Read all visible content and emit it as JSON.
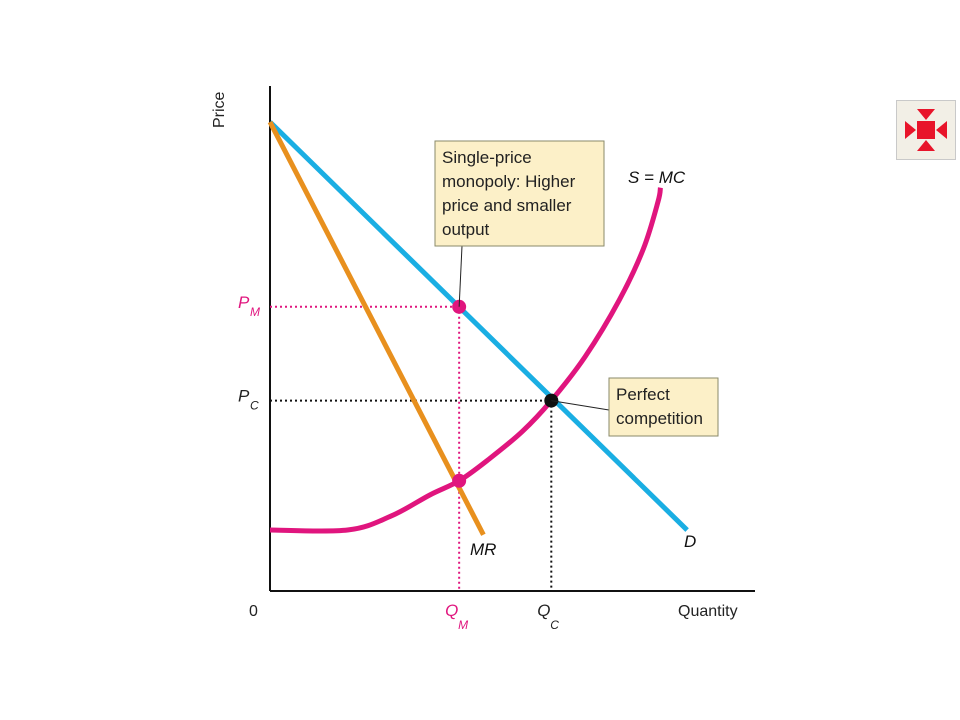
{
  "chart_data": {
    "type": "line",
    "xlabel": "Quantity",
    "ylabel": "Price",
    "xlim": [
      0,
      100
    ],
    "ylim": [
      0,
      100
    ],
    "origin_label": "0",
    "series": [
      {
        "name": "D",
        "color": "#1aaee3",
        "points": [
          [
            0,
            100
          ],
          [
            86,
            13
          ]
        ]
      },
      {
        "name": "MR",
        "color": "#e8901e",
        "points": [
          [
            0,
            100
          ],
          [
            44,
            12
          ]
        ]
      },
      {
        "name": "S = MC",
        "color": "#e0157e",
        "points": [
          [
            0,
            13
          ],
          [
            16,
            13
          ],
          [
            25,
            16
          ],
          [
            33,
            20.5
          ],
          [
            39,
            23.5
          ],
          [
            45,
            28
          ],
          [
            52,
            34
          ],
          [
            58,
            40.6
          ],
          [
            65,
            50
          ],
          [
            72,
            62
          ],
          [
            77,
            73
          ],
          [
            80,
            83
          ],
          [
            80.5,
            86
          ]
        ]
      }
    ],
    "points": [
      {
        "name": "monopoly",
        "x": 39,
        "y": 60.6,
        "color": "#e0157e"
      },
      {
        "name": "mr-equals-mc",
        "x": 39,
        "y": 23.5,
        "color": "#e0157e"
      },
      {
        "name": "competitive",
        "x": 58,
        "y": 40.6,
        "color": "#111111"
      }
    ],
    "ticks": {
      "x": [
        {
          "main": "Q",
          "sub": "M",
          "value": 39,
          "color": "#e0157e"
        },
        {
          "main": "Q",
          "sub": "C",
          "value": 58,
          "color": "#222222"
        }
      ],
      "y": [
        {
          "main": "P",
          "sub": "M",
          "value": 60.6,
          "color": "#e0157e"
        },
        {
          "main": "P",
          "sub": "C",
          "value": 40.6,
          "color": "#222222"
        }
      ]
    },
    "annotations": [
      {
        "name": "monopoly-annotation",
        "lines": [
          "Single-price",
          "monopoly: Higher",
          "price and smaller",
          "output"
        ],
        "target": "monopoly"
      },
      {
        "name": "competition-annotation",
        "lines": [
          "Perfect",
          "competition"
        ],
        "target": "competitive"
      }
    ],
    "grid": false,
    "legend": "none"
  },
  "ui": {
    "nav_icon": "expand-arrows-icon",
    "nav_color": "#e8142a"
  }
}
